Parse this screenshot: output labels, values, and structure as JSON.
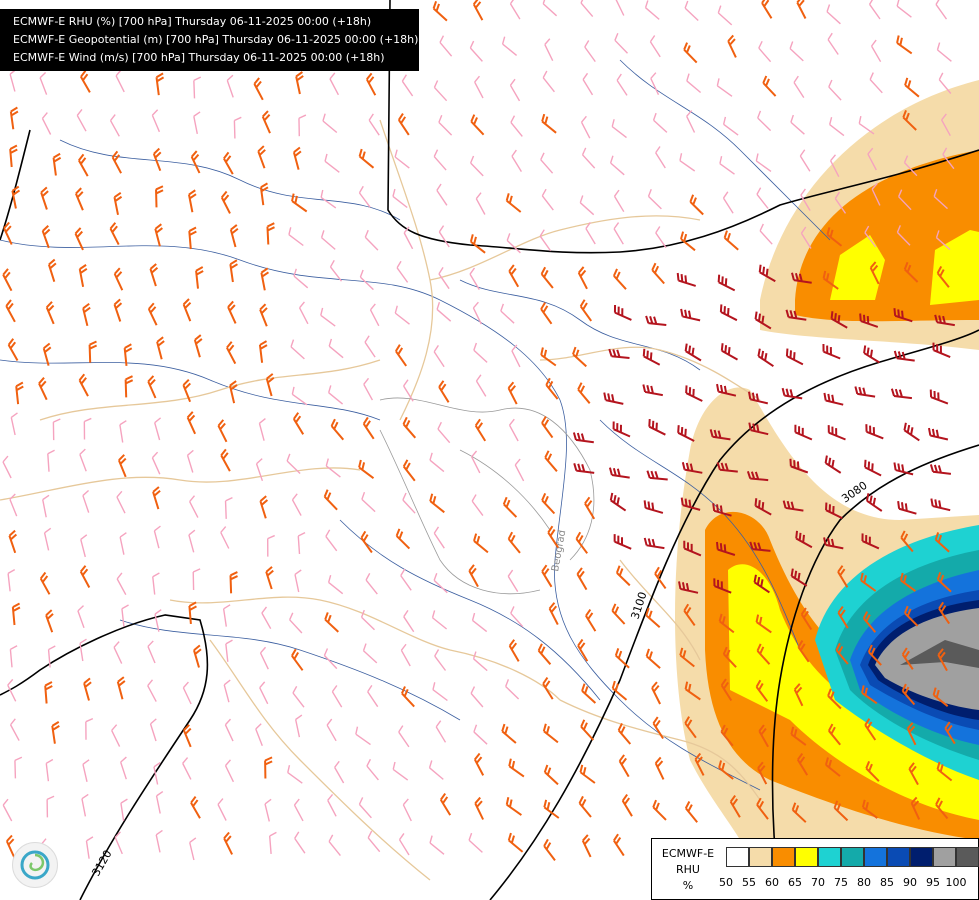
{
  "header": {
    "lines": [
      "ECMWF-E RHU (%) [700 hPa] Thursday 06-11-2025 00:00 (+18h)",
      "ECMWF-E Geopotential (m) [700 hPa] Thursday 06-11-2025 00:00 (+18h)",
      "ECMWF-E Wind (m/s) [700 hPa] Thursday 06-11-2025 00:00 (+18h)"
    ]
  },
  "contours": {
    "labels": [
      "3100",
      "3080",
      "3120"
    ]
  },
  "city": {
    "label": "Beograd"
  },
  "legend": {
    "model": "ECMWF-E",
    "variable": "RHU",
    "unit": "%",
    "colors": [
      "#ffffff",
      "#f5dcaa",
      "#f98d00",
      "#ffff00",
      "#1ed2d2",
      "#14aaaa",
      "#1473dc",
      "#0a4bb4",
      "#001e6e",
      "#a0a0a0",
      "#5a5a5a"
    ],
    "ticks": [
      "50",
      "55",
      "60",
      "65",
      "70",
      "75",
      "80",
      "85",
      "90",
      "95",
      "100"
    ]
  },
  "colors": {
    "wind_light": "#f5a3bf",
    "wind_medium": "#f06010",
    "wind_strong": "#b4141e",
    "border": "#e6c89a",
    "river": "#3c5fa0"
  },
  "icons": {
    "logo": "ecmwf-swirl-icon"
  }
}
